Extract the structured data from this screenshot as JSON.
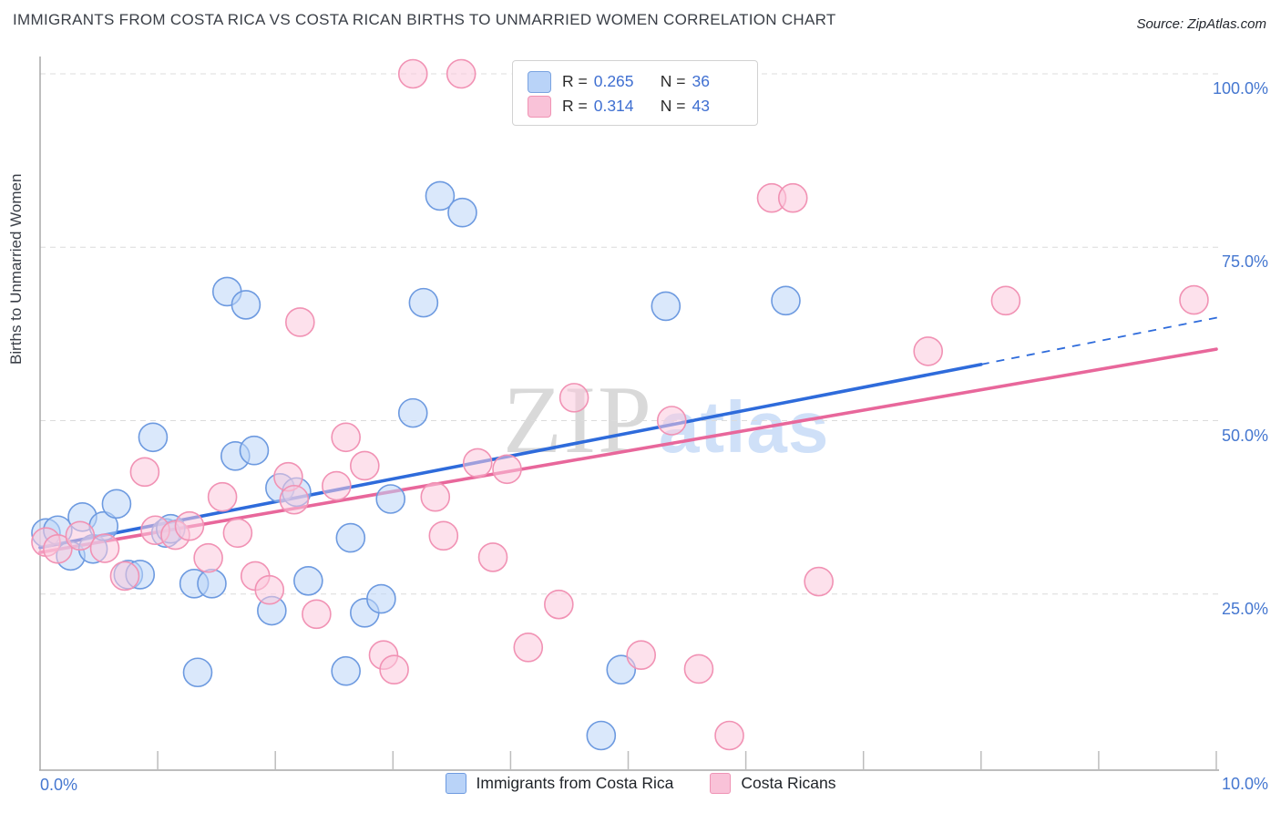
{
  "chart_data": {
    "type": "scatter",
    "title": "IMMIGRANTS FROM COSTA RICA VS COSTA RICAN BIRTHS TO UNMARRIED WOMEN CORRELATION CHART",
    "source": "Source: ZipAtlas.com",
    "ylabel": "Births to Unmarried Women",
    "watermark": {
      "zip": "ZIP",
      "atlas": "atlas"
    },
    "xlim": [
      0,
      10
    ],
    "ylim": [
      0,
      105
    ],
    "x_axis_labels": {
      "left": "0.0%",
      "right": "10.0%"
    },
    "y_ticks": [
      {
        "value": 100,
        "label": "100.0%"
      },
      {
        "value": 75,
        "label": "75.0%"
      },
      {
        "value": 50,
        "label": "50.0%"
      },
      {
        "value": 25,
        "label": "25.0%"
      }
    ],
    "grid": "horizontal-dashed",
    "legend_position": "top-center-and-bottom-center",
    "legend_box": [
      {
        "series": "Immigrants from Costa Rica",
        "r_label": "R =",
        "r": "0.265",
        "n_label": "N =",
        "n": "36"
      },
      {
        "series": "Costa Ricans",
        "r_label": "R =",
        "r": "0.314",
        "n_label": "N =",
        "n": "43"
      }
    ],
    "series": [
      {
        "name": "Immigrants from Costa Rica",
        "color_fill": "#bcd6f8",
        "color_stroke": "#6d9ae0",
        "points": [
          [
            0.05,
            33.8
          ],
          [
            0.15,
            34.2
          ],
          [
            0.26,
            30.5
          ],
          [
            0.36,
            36.1
          ],
          [
            0.45,
            31.5
          ],
          [
            0.54,
            34.8
          ],
          [
            0.65,
            38.0
          ],
          [
            0.75,
            27.8
          ],
          [
            0.85,
            27.8
          ],
          [
            0.96,
            47.6
          ],
          [
            1.07,
            33.8
          ],
          [
            1.11,
            34.4
          ],
          [
            1.31,
            26.5
          ],
          [
            1.34,
            13.7
          ],
          [
            1.46,
            26.5
          ],
          [
            1.59,
            68.6
          ],
          [
            1.66,
            44.9
          ],
          [
            1.75,
            66.7
          ],
          [
            1.82,
            45.7
          ],
          [
            1.97,
            22.6
          ],
          [
            2.04,
            40.3
          ],
          [
            2.18,
            39.7
          ],
          [
            2.28,
            26.9
          ],
          [
            2.6,
            13.9
          ],
          [
            2.64,
            33.1
          ],
          [
            2.76,
            22.3
          ],
          [
            2.9,
            24.3
          ],
          [
            2.98,
            38.7
          ],
          [
            3.17,
            51.1
          ],
          [
            3.26,
            67.0
          ],
          [
            3.4,
            82.4
          ],
          [
            3.59,
            80.0
          ],
          [
            4.77,
            4.6
          ],
          [
            4.94,
            14.1
          ],
          [
            5.32,
            66.5
          ],
          [
            6.34,
            67.3
          ]
        ]
      },
      {
        "name": "Costa Ricans",
        "color_fill": "#fbc9dd",
        "color_stroke": "#f192b4",
        "points": [
          [
            0.05,
            32.5
          ],
          [
            0.15,
            31.5
          ],
          [
            0.34,
            33.4
          ],
          [
            0.55,
            31.6
          ],
          [
            0.72,
            27.6
          ],
          [
            0.89,
            42.6
          ],
          [
            0.98,
            34.2
          ],
          [
            1.15,
            33.5
          ],
          [
            1.27,
            34.8
          ],
          [
            1.43,
            30.2
          ],
          [
            1.55,
            39.0
          ],
          [
            1.68,
            33.8
          ],
          [
            1.83,
            27.6
          ],
          [
            1.95,
            25.6
          ],
          [
            2.11,
            41.9
          ],
          [
            2.16,
            38.6
          ],
          [
            2.21,
            64.2
          ],
          [
            2.35,
            22.1
          ],
          [
            2.52,
            40.6
          ],
          [
            2.6,
            47.6
          ],
          [
            2.76,
            43.5
          ],
          [
            2.92,
            16.2
          ],
          [
            3.01,
            14.1
          ],
          [
            3.17,
            100.0
          ],
          [
            3.36,
            39.0
          ],
          [
            3.43,
            33.4
          ],
          [
            3.58,
            100.0
          ],
          [
            3.72,
            43.9
          ],
          [
            3.85,
            30.3
          ],
          [
            3.97,
            43.0
          ],
          [
            4.15,
            17.3
          ],
          [
            4.41,
            23.5
          ],
          [
            4.54,
            53.3
          ],
          [
            5.11,
            16.2
          ],
          [
            5.37,
            50.0
          ],
          [
            5.6,
            14.2
          ],
          [
            5.86,
            4.6
          ],
          [
            6.22,
            82.1
          ],
          [
            6.4,
            82.1
          ],
          [
            6.62,
            26.8
          ],
          [
            7.55,
            60.0
          ],
          [
            8.21,
            67.3
          ],
          [
            9.81,
            67.4
          ]
        ]
      }
    ],
    "trend_lines": [
      {
        "series": "Immigrants from Costa Rica",
        "color": "#2e6bdb",
        "solid": [
          [
            0,
            31.7
          ],
          [
            8.0,
            58.1
          ]
        ],
        "dashed": [
          [
            8.0,
            58.1
          ],
          [
            10.05,
            65.0
          ]
        ]
      },
      {
        "series": "Costa Ricans",
        "color": "#e8679b",
        "solid": [
          [
            0,
            31.0
          ],
          [
            10.0,
            60.3
          ]
        ],
        "dashed": null
      }
    ],
    "colors": {
      "axis_line": "#a8a8a8",
      "tick_line": "#bdbdbd",
      "gridline": "#dcdcdc",
      "tick_label_blue": "#4577d0",
      "legend_value_blue": "#3f6fd1",
      "title_text": "#3a3f47"
    }
  }
}
